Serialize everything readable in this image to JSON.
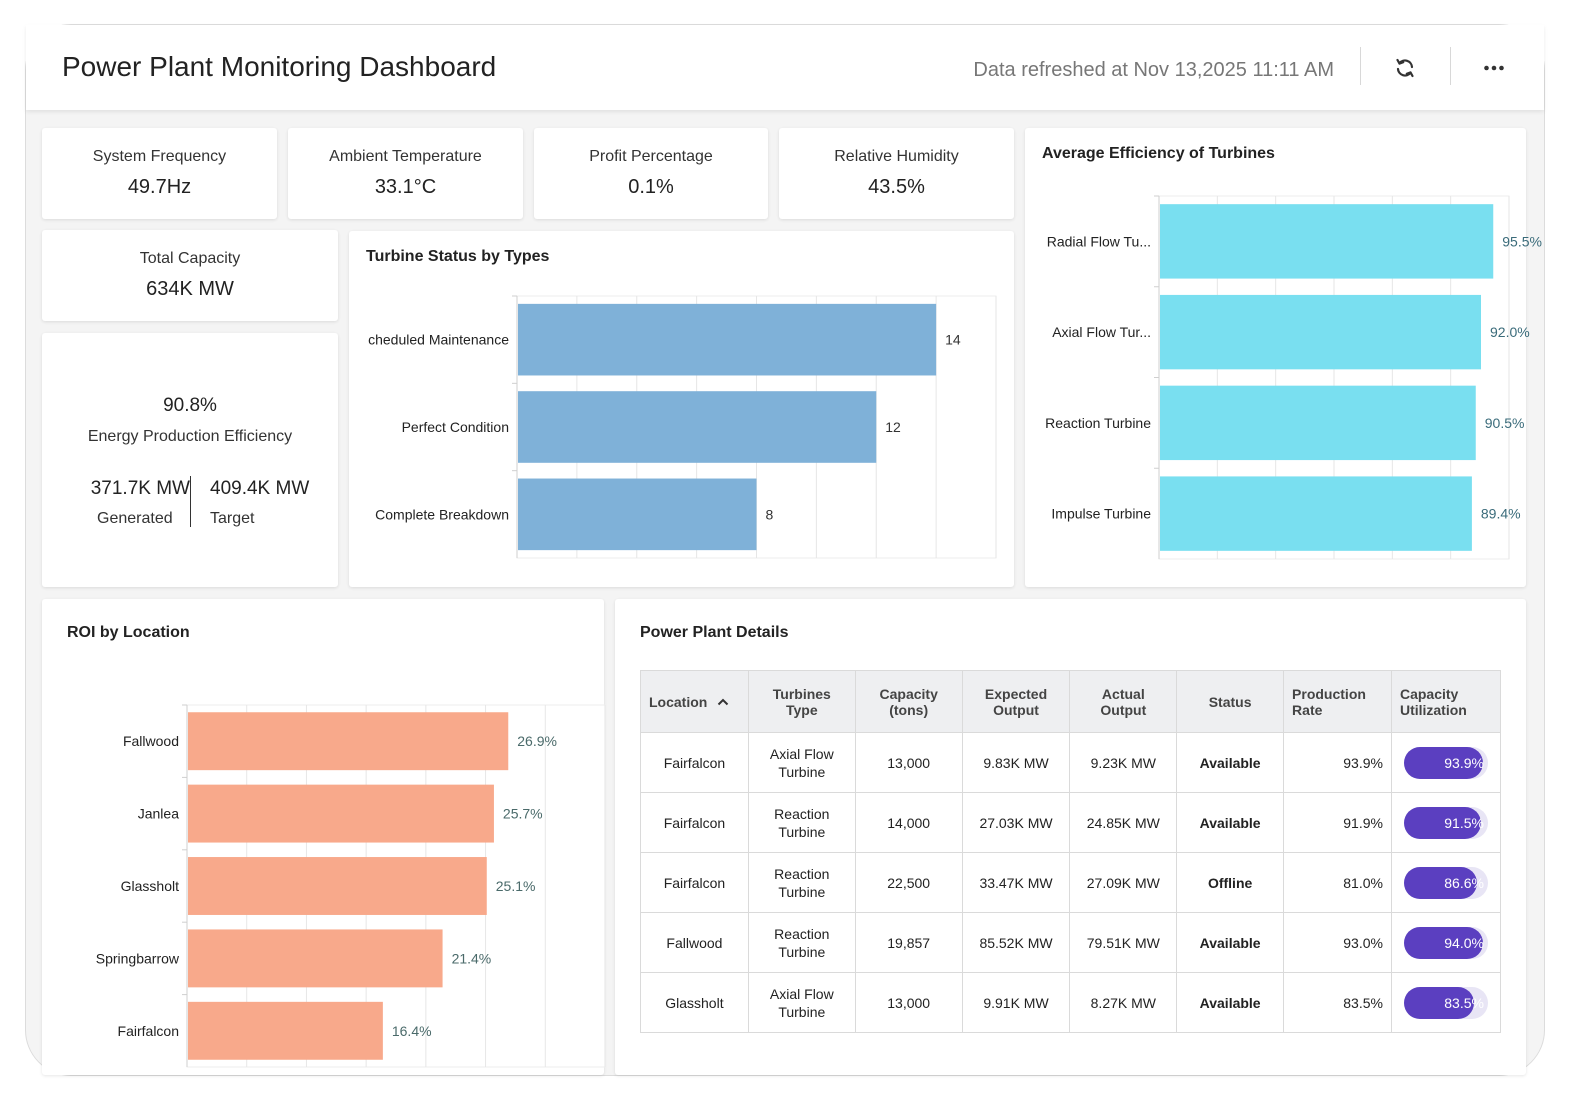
{
  "header": {
    "title": "Power Plant Monitoring Dashboard",
    "refresh_text": "Data refreshed at Nov 13,2025 11:11 AM",
    "refresh_icon": "refresh-icon",
    "more_icon": "more-horizontal-icon"
  },
  "kpis": [
    {
      "label": "System Frequency",
      "value": "49.7Hz"
    },
    {
      "label": "Ambient Temperature",
      "value": "33.1°C"
    },
    {
      "label": "Profit Percentage",
      "value": "0.1%"
    },
    {
      "label": "Relative Humidity",
      "value": "43.5%"
    }
  ],
  "total_capacity": {
    "label": "Total Capacity",
    "value": "634K MW"
  },
  "efficiency": {
    "percent": "90.8%",
    "label": "Energy Production Efficiency",
    "generated_value": "371.7K MW",
    "generated_label": "Generated",
    "target_value": "409.4K MW",
    "target_label": "Target"
  },
  "turbine_status": {
    "title": "Turbine Status by Types",
    "chart_data": {
      "type": "bar",
      "orientation": "horizontal",
      "categories": [
        "cheduled Maintenance",
        "Perfect Condition",
        "Complete Breakdown"
      ],
      "values": [
        14,
        12,
        8
      ],
      "data_labels": [
        "14",
        "12",
        "8"
      ],
      "xlim": [
        0,
        16
      ],
      "grid": true,
      "color": "#7fb1d8"
    }
  },
  "avg_efficiency": {
    "title": "Average Efficiency of Turbines",
    "chart_data": {
      "type": "bar",
      "orientation": "horizontal",
      "categories": [
        "Radial Flow Tu...",
        "Axial Flow Tur...",
        "Reaction Turbine",
        "Impulse Turbine"
      ],
      "values": [
        95.5,
        92.0,
        90.5,
        89.4
      ],
      "data_labels": [
        "95.5%",
        "92.0%",
        "90.5%",
        "89.4%"
      ],
      "xlim": [
        0,
        100
      ],
      "grid": true,
      "color": "#79dff0"
    }
  },
  "roi": {
    "title": "ROI by Location",
    "chart_data": {
      "type": "bar",
      "orientation": "horizontal",
      "categories": [
        "Fallwood",
        "Janlea",
        "Glassholt",
        "Springbarrow",
        "Fairfalcon"
      ],
      "values": [
        26.9,
        25.7,
        25.1,
        21.4,
        16.4
      ],
      "data_labels": [
        "26.9%",
        "25.7%",
        "25.1%",
        "21.4%",
        "16.4%"
      ],
      "xlim": [
        0,
        35
      ],
      "grid": true,
      "color": "#f8a98b"
    }
  },
  "details": {
    "title": "Power Plant Details",
    "sort_icon": "chevron-up-icon",
    "columns": {
      "location": "Location",
      "type": "Turbines Type",
      "capacity": "Capacity (tons)",
      "expected": "Expected Output",
      "actual": "Actual Output",
      "status": "Status",
      "production": "Production Rate",
      "utilization": "Capacity Utilization"
    },
    "rows": [
      {
        "location": "Fairfalcon",
        "type": "Axial Flow Turbine",
        "capacity": "13,000",
        "expected": "9.83K MW",
        "actual": "9.23K MW",
        "status": "Available",
        "production": "93.9%",
        "utilization": "93.9%",
        "utilization_value": 93.9
      },
      {
        "location": "Fairfalcon",
        "type": "Reaction Turbine",
        "capacity": "14,000",
        "expected": "27.03K MW",
        "actual": "24.85K MW",
        "status": "Available",
        "production": "91.9%",
        "utilization": "91.5%",
        "utilization_value": 91.5
      },
      {
        "location": "Fairfalcon",
        "type": "Reaction Turbine",
        "capacity": "22,500",
        "expected": "33.47K MW",
        "actual": "27.09K MW",
        "status": "Offline",
        "production": "81.0%",
        "utilization": "86.6%",
        "utilization_value": 86.6
      },
      {
        "location": "Fallwood",
        "type": "Reaction Turbine",
        "capacity": "19,857",
        "expected": "85.52K MW",
        "actual": "79.51K MW",
        "status": "Available",
        "production": "93.0%",
        "utilization": "94.0%",
        "utilization_value": 94.0
      },
      {
        "location": "Glassholt",
        "type": "Axial Flow Turbine",
        "capacity": "13,000",
        "expected": "9.91K MW",
        "actual": "8.27K MW",
        "status": "Available",
        "production": "83.5%",
        "utilization": "83.5%",
        "utilization_value": 83.5
      }
    ]
  },
  "colors": {
    "available": "#1e8a1e",
    "offline": "#c41e1e",
    "utilization_fill": "#5b3fc0"
  }
}
